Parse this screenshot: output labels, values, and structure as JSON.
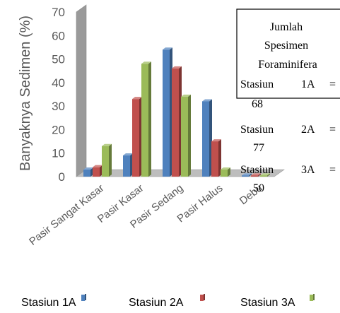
{
  "chart_data": {
    "type": "bar",
    "title": "",
    "xlabel": "",
    "ylabel": "Banyaknya Sedimen (%)",
    "ylim": [
      0,
      70
    ],
    "yticks": [
      0,
      10,
      20,
      30,
      40,
      50,
      60,
      70
    ],
    "categories": [
      "Pasir Sangat Kasar",
      "Pasir Kasar",
      "Pasir Sedang",
      "Pasir Halus",
      "Debu"
    ],
    "series": [
      {
        "name": "Stasiun 1A",
        "color": "#4f81bd",
        "values": [
          3,
          9,
          54,
          32,
          0.5
        ]
      },
      {
        "name": "Stasiun 2A",
        "color": "#c0504d",
        "values": [
          4,
          33,
          46,
          15,
          0.5
        ]
      },
      {
        "name": "Stasiun 3A",
        "color": "#9bbb59",
        "values": [
          13,
          48,
          34,
          3,
          0.5
        ]
      }
    ],
    "grid": false,
    "legend_position": "bottom",
    "annotation": {
      "title_lines": [
        "Jumlah",
        "Spesimen",
        "Foraminifera"
      ],
      "rows": [
        {
          "label": "Stasiun",
          "code": "1A",
          "eq": "=",
          "value": "68"
        },
        {
          "label": "Stasiun",
          "code": "2A",
          "eq": "=",
          "value": "77"
        },
        {
          "label": "Stasiun",
          "code": "3A",
          "eq": "=",
          "value": "50"
        }
      ]
    }
  }
}
